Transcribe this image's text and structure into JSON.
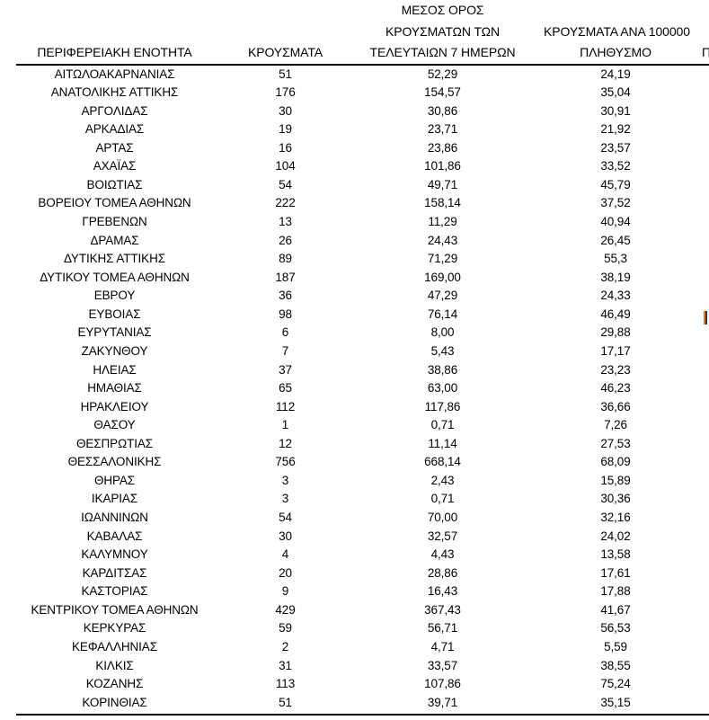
{
  "page": {
    "background": "#ffffff",
    "text_color": "#000000"
  },
  "table": {
    "headers": {
      "region": "ΠΕΡΙΦΕΡΕΙΑΚΗ ΕΝΟΤΗΤΑ",
      "cases": "ΚΡΟΥΣΜΑΤΑ",
      "avg7_line1": "ΜΕΣΟΣ ΟΡΟΣ",
      "avg7_line2": "ΚΡΟΥΣΜΑΤΩΝ ΤΩΝ",
      "avg7_line3": "ΤΕΛΕΥΤΑΙΩΝ 7 ΗΜΕΡΩΝ",
      "per100k_line1": "ΚΡΟΥΣΜΑΤΑ ΑΝΑ 100000",
      "per100k_line2": "ΠΛΗΘΥΣΜΟ",
      "partial_next_column": "Π"
    },
    "rows": [
      {
        "region": "ΑΙΤΩΛΟΑΚΑΡΝΑΝΙΑΣ",
        "cases": 51,
        "avg7": "52,29",
        "per100k": "24,19"
      },
      {
        "region": "ΑΝΑΤΟΛΙΚΗΣ ΑΤΤΙΚΗΣ",
        "cases": 176,
        "avg7": "154,57",
        "per100k": "35,04"
      },
      {
        "region": "ΑΡΓΟΛΙΔΑΣ",
        "cases": 30,
        "avg7": "30,86",
        "per100k": "30,91"
      },
      {
        "region": "ΑΡΚΑΔΙΑΣ",
        "cases": 19,
        "avg7": "23,71",
        "per100k": "21,92"
      },
      {
        "region": "ΑΡΤΑΣ",
        "cases": 16,
        "avg7": "23,86",
        "per100k": "23,57"
      },
      {
        "region": "ΑΧΑΪΑΣ",
        "cases": 104,
        "avg7": "101,86",
        "per100k": "33,52"
      },
      {
        "region": "ΒΟΙΩΤΙΑΣ",
        "cases": 54,
        "avg7": "49,71",
        "per100k": "45,79"
      },
      {
        "region": "ΒΟΡΕΙΟΥ ΤΟΜΕΑ ΑΘΗΝΩΝ",
        "cases": 222,
        "avg7": "158,14",
        "per100k": "37,52"
      },
      {
        "region": "ΓΡΕΒΕΝΩΝ",
        "cases": 13,
        "avg7": "11,29",
        "per100k": "40,94"
      },
      {
        "region": "ΔΡΑΜΑΣ",
        "cases": 26,
        "avg7": "24,43",
        "per100k": "26,45"
      },
      {
        "region": "ΔΥΤΙΚΗΣ ΑΤΤΙΚΗΣ",
        "cases": 89,
        "avg7": "71,29",
        "per100k": "55,3"
      },
      {
        "region": "ΔΥΤΙΚΟΥ ΤΟΜΕΑ ΑΘΗΝΩΝ",
        "cases": 187,
        "avg7": "169,00",
        "per100k": "38,19"
      },
      {
        "region": "ΕΒΡΟΥ",
        "cases": 36,
        "avg7": "47,29",
        "per100k": "24,33"
      },
      {
        "region": "ΕΥΒΟΙΑΣ",
        "cases": 98,
        "avg7": "76,14",
        "per100k": "46,49"
      },
      {
        "region": "ΕΥΡΥΤΑΝΙΑΣ",
        "cases": 6,
        "avg7": "8,00",
        "per100k": "29,88"
      },
      {
        "region": "ΖΑΚΥΝΘΟΥ",
        "cases": 7,
        "avg7": "5,43",
        "per100k": "17,17"
      },
      {
        "region": "ΗΛΕΙΑΣ",
        "cases": 37,
        "avg7": "38,86",
        "per100k": "23,23"
      },
      {
        "region": "ΗΜΑΘΙΑΣ",
        "cases": 65,
        "avg7": "63,00",
        "per100k": "46,23"
      },
      {
        "region": "ΗΡΑΚΛΕΙΟΥ",
        "cases": 112,
        "avg7": "117,86",
        "per100k": "36,66"
      },
      {
        "region": "ΘΑΣΟΥ",
        "cases": 1,
        "avg7": "0,71",
        "per100k": "7,26"
      },
      {
        "region": "ΘΕΣΠΡΩΤΙΑΣ",
        "cases": 12,
        "avg7": "11,14",
        "per100k": "27,53"
      },
      {
        "region": "ΘΕΣΣΑΛΟΝΙΚΗΣ",
        "cases": 756,
        "avg7": "668,14",
        "per100k": "68,09"
      },
      {
        "region": "ΘΗΡΑΣ",
        "cases": 3,
        "avg7": "2,43",
        "per100k": "15,89"
      },
      {
        "region": "ΙΚΑΡΙΑΣ",
        "cases": 3,
        "avg7": "0,71",
        "per100k": "30,36"
      },
      {
        "region": "ΙΩΑΝΝΙΝΩΝ",
        "cases": 54,
        "avg7": "70,00",
        "per100k": "32,16"
      },
      {
        "region": "ΚΑΒΑΛΑΣ",
        "cases": 30,
        "avg7": "32,57",
        "per100k": "24,02"
      },
      {
        "region": "ΚΑΛΥΜΝΟΥ",
        "cases": 4,
        "avg7": "4,43",
        "per100k": "13,58"
      },
      {
        "region": "ΚΑΡΔΙΤΣΑΣ",
        "cases": 20,
        "avg7": "28,86",
        "per100k": "17,61"
      },
      {
        "region": "ΚΑΣΤΟΡΙΑΣ",
        "cases": 9,
        "avg7": "16,43",
        "per100k": "17,88"
      },
      {
        "region": "ΚΕΝΤΡΙΚΟΥ ΤΟΜΕΑ ΑΘΗΝΩΝ",
        "cases": 429,
        "avg7": "367,43",
        "per100k": "41,67"
      },
      {
        "region": "ΚΕΡΚΥΡΑΣ",
        "cases": 59,
        "avg7": "56,71",
        "per100k": "56,53"
      },
      {
        "region": "ΚΕΦΑΛΛΗΝΙΑΣ",
        "cases": 2,
        "avg7": "4,71",
        "per100k": "5,59"
      },
      {
        "region": "ΚΙΛΚΙΣ",
        "cases": 31,
        "avg7": "33,57",
        "per100k": "38,55"
      },
      {
        "region": "ΚΟΖΑΝΗΣ",
        "cases": 113,
        "avg7": "107,86",
        "per100k": "75,24"
      },
      {
        "region": "ΚΟΡΙΝΘΙΑΣ",
        "cases": 51,
        "avg7": "39,71",
        "per100k": "35,15"
      }
    ]
  },
  "decorations": {
    "rule_color": "#000000",
    "sliver_left_color": "#e8791d",
    "sliver_right_color": "#1f3864"
  }
}
